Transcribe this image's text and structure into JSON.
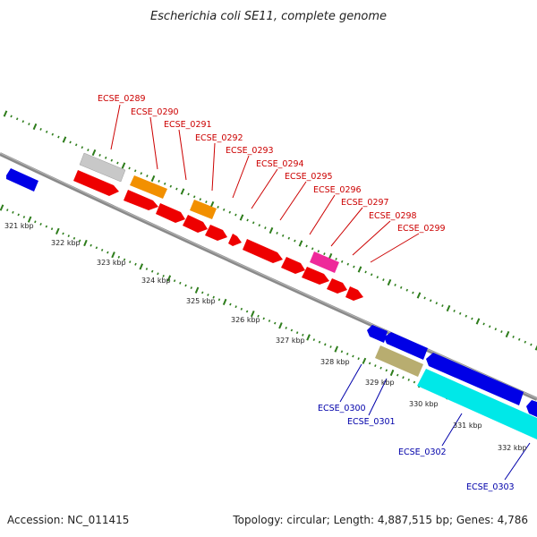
{
  "title": "Escherichia coli SE11, complete genome",
  "footer": {
    "accession": "Accession: NC_011415",
    "summary": "Topology: circular; Length: 4,887,515 bp; Genes: 4,786"
  },
  "colors": {
    "backbone": "#808080",
    "tick_green": "#2e7d1c",
    "label_red": "#cc0000",
    "label_blue": "#0000aa",
    "red": "#ee0000",
    "orange": "#f29000",
    "silver": "#c8c8c8",
    "magenta": "#ee2a9a",
    "blue": "#0000e6",
    "khaki": "#b8ad70",
    "cyan": "#00e8e8"
  },
  "ticks": [
    "321 kbp",
    "322 kbp",
    "323 kbp",
    "324 kbp",
    "325 kbp",
    "326 kbp",
    "327 kbp",
    "328 kbp",
    "329 kbp",
    "330 kbp",
    "331 kbp",
    "332 kbp"
  ],
  "gene_labels_top": [
    "ECSE_0289",
    "ECSE_0290",
    "ECSE_0291",
    "ECSE_0292",
    "ECSE_0293",
    "ECSE_0294",
    "ECSE_0295",
    "ECSE_0296",
    "ECSE_0297",
    "ECSE_0298",
    "ECSE_0299"
  ],
  "gene_labels_bottom": [
    "ECSE_0300",
    "ECSE_0301",
    "ECSE_0302",
    "ECSE_0303"
  ]
}
